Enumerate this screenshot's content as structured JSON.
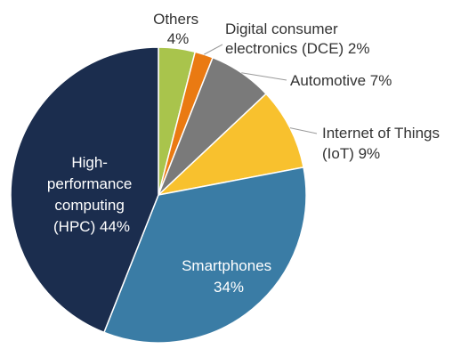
{
  "chart_data": {
    "type": "pie",
    "title": "",
    "slices": [
      {
        "label": "Others",
        "value": 4,
        "value_label": "4%",
        "color": "#a9c44c"
      },
      {
        "label": "Digital consumer electronics (DCE)",
        "value": 2,
        "value_label": "2%",
        "color": "#ea7a12"
      },
      {
        "label": "Automotive",
        "value": 7,
        "value_label": "7%",
        "color": "#7a7a7a"
      },
      {
        "label": "Internet of Things (IoT)",
        "value": 9,
        "value_label": "9%",
        "color": "#f8c12e"
      },
      {
        "label": "Smartphones",
        "value": 34,
        "value_label": "34%",
        "color": "#3a7ca5"
      },
      {
        "label": "High-performance computing (HPC)",
        "value": 44,
        "value_label": "44%",
        "color": "#1b2d4e"
      }
    ],
    "label_lines": {
      "others": [
        "Others",
        "4%"
      ],
      "dce": [
        "Digital consumer",
        "electronics (DCE) 2%"
      ],
      "automotive": [
        "Automotive 7%"
      ],
      "iot": [
        "Internet of Things",
        "(IoT) 9%"
      ],
      "smartphones": [
        "Smartphones",
        "34%"
      ],
      "hpc": [
        "High-",
        "performance",
        "computing",
        "(HPC) 44%"
      ]
    }
  }
}
